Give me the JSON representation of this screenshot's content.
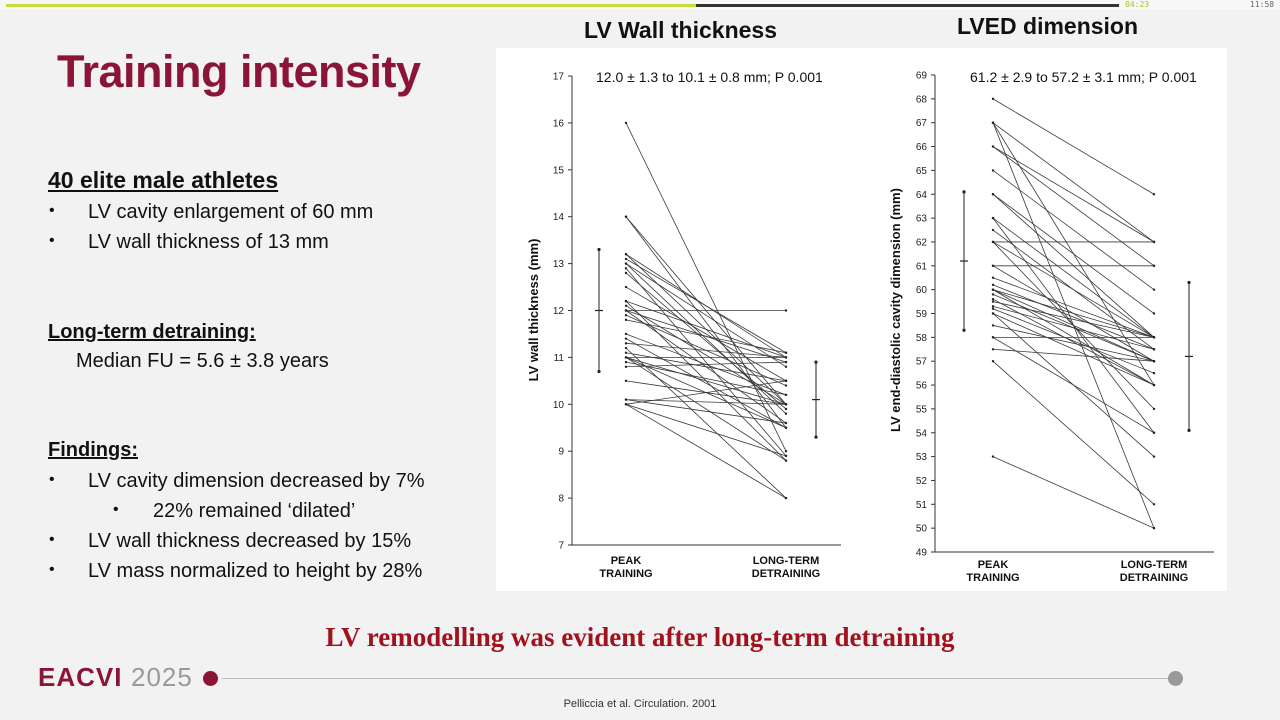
{
  "player": {
    "elapsed": "04:23",
    "total": "11:58",
    "progress": 0.62
  },
  "slide": {
    "title": "Training intensity",
    "sections": [
      {
        "heading": "40 elite male athletes",
        "bullets": [
          "LV cavity enlargement of 60 mm",
          "LV wall thickness of 13 mm"
        ]
      },
      {
        "heading": "Long-term detraining:",
        "lines": [
          "Median FU = 5.6 ± 3.8 years"
        ]
      },
      {
        "heading": "Findings:",
        "bullets": [
          "LV cavity dimension decreased by 7%",
          "22% remained ‘dilated’",
          "LV wall thickness decreased by 15%",
          "LV mass normalized to height by 28%"
        ]
      }
    ],
    "conclusion": "LV remodelling was evident after long-term detraining",
    "citation": "Pelliccia et al. Circulation. 2001",
    "logo": {
      "word": "EACVI",
      "year": "2025"
    },
    "colors": {
      "brand": "#8b1537",
      "conclusion": "#a0131e",
      "progress": "#c9dc3c"
    }
  },
  "chart_data": [
    {
      "type": "line",
      "title": "LV Wall thickness",
      "annotation": "12.0 ± 1.3 to 10.1 ± 0.8 mm; P 0.001",
      "ylabel": "LV wall thickness (mm)",
      "ylim": [
        7,
        17
      ],
      "yticks": [
        7,
        8,
        9,
        10,
        11,
        12,
        13,
        14,
        15,
        16,
        17
      ],
      "categories": [
        "PEAK TRAINING",
        "LONG-TERM DETRAINING"
      ],
      "summary": {
        "peak": {
          "mean": 12.0,
          "sd": 1.3
        },
        "detraining": {
          "mean": 10.1,
          "sd": 0.8
        }
      },
      "pairs": [
        [
          16.0,
          9.0
        ],
        [
          14.0,
          10.0
        ],
        [
          14.0,
          9.5
        ],
        [
          13.2,
          11.0
        ],
        [
          13.2,
          10.0
        ],
        [
          13.1,
          11.1
        ],
        [
          13.0,
          10.8
        ],
        [
          13.0,
          9.8
        ],
        [
          12.9,
          8.9
        ],
        [
          12.8,
          9.9
        ],
        [
          12.5,
          10.5
        ],
        [
          12.2,
          11.0
        ],
        [
          12.2,
          8.8
        ],
        [
          12.1,
          10.0
        ],
        [
          12.0,
          12.0
        ],
        [
          12.0,
          10.9
        ],
        [
          12.0,
          9.6
        ],
        [
          11.9,
          10.4
        ],
        [
          11.8,
          11.1
        ],
        [
          11.5,
          10.2
        ],
        [
          11.4,
          9.5
        ],
        [
          11.3,
          11.0
        ],
        [
          11.2,
          8.0
        ],
        [
          11.1,
          10.5
        ],
        [
          11.0,
          11.0
        ],
        [
          11.0,
          10.0
        ],
        [
          11.0,
          9.5
        ],
        [
          11.0,
          8.8
        ],
        [
          10.9,
          10.2
        ],
        [
          10.8,
          10.9
        ],
        [
          10.5,
          10.0
        ],
        [
          10.1,
          10.0
        ],
        [
          10.1,
          9.6
        ],
        [
          10.0,
          10.5
        ],
        [
          10.0,
          8.9
        ],
        [
          10.0,
          8.0
        ]
      ]
    },
    {
      "type": "line",
      "title": "LVED dimension",
      "annotation": "61.2 ± 2.9 to 57.2 ± 3.1 mm; P 0.001",
      "ylabel": "LV end-diastolic cavity dimension (mm)",
      "ylim": [
        49,
        69
      ],
      "yticks": [
        49,
        50,
        51,
        52,
        53,
        54,
        55,
        56,
        57,
        58,
        59,
        60,
        61,
        62,
        63,
        64,
        65,
        66,
        67,
        68,
        69
      ],
      "categories": [
        "PEAK TRAINING",
        "LONG-TERM DETRAINING"
      ],
      "summary": {
        "peak": {
          "mean": 61.2,
          "sd": 2.9
        },
        "detraining": {
          "mean": 57.2,
          "sd": 3.1
        }
      },
      "pairs": [
        [
          68,
          64
        ],
        [
          67,
          62
        ],
        [
          67,
          56
        ],
        [
          67,
          50
        ],
        [
          66,
          62
        ],
        [
          66,
          61
        ],
        [
          65,
          60
        ],
        [
          64,
          59
        ],
        [
          64,
          58
        ],
        [
          63,
          58
        ],
        [
          63,
          54
        ],
        [
          62.5,
          57.5
        ],
        [
          62,
          62
        ],
        [
          62,
          58
        ],
        [
          62,
          55
        ],
        [
          61,
          61
        ],
        [
          61,
          57
        ],
        [
          60.5,
          58
        ],
        [
          60.2,
          57.5
        ],
        [
          60,
          58
        ],
        [
          60,
          57
        ],
        [
          60,
          56
        ],
        [
          59.8,
          57
        ],
        [
          59.6,
          56
        ],
        [
          59.5,
          58
        ],
        [
          59.3,
          57.5
        ],
        [
          59.2,
          56.5
        ],
        [
          59,
          56
        ],
        [
          59,
          53
        ],
        [
          58.5,
          57
        ],
        [
          58,
          58
        ],
        [
          58,
          54
        ],
        [
          57.5,
          57
        ],
        [
          57,
          51
        ],
        [
          53,
          50
        ]
      ]
    }
  ]
}
